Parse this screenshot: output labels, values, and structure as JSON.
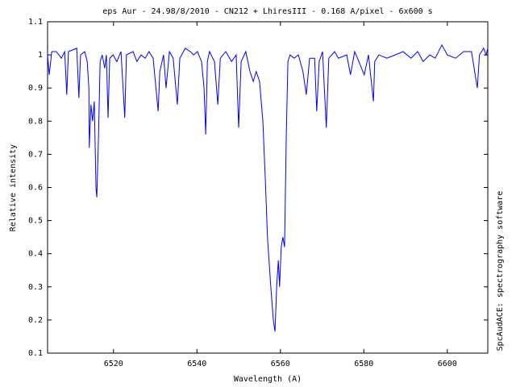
{
  "chart_data": {
    "type": "line",
    "title": "eps Aur - 24.98/8/2010 - CN212 + LhiresIII - 0.168 A/pixel - 6x600 s",
    "x_label": "Wavelength (A)",
    "y_label": "Relative intensity",
    "side_note": "SpcAudACE: spectrography software",
    "xlim": [
      6504.2,
      6609.7
    ],
    "ylim": [
      0.1,
      1.1
    ],
    "xticks": [
      6520,
      6540,
      6560,
      6580,
      6600
    ],
    "yticks": [
      0.1,
      0.2,
      0.3,
      0.4,
      0.5,
      0.6,
      0.7,
      0.8,
      0.9,
      1,
      1.1
    ],
    "grid": false,
    "series": [
      {
        "color": "#0000ff",
        "x": [
          6504.2,
          6504.6,
          6505.2,
          6506.3,
          6507.5,
          6508.3,
          6508.8,
          6509.2,
          6511.2,
          6511.7,
          6512.1,
          6513.1,
          6513.7,
          6514.1,
          6514.2,
          6514.6,
          6515.0,
          6515.4,
          6515.8,
          6516.0,
          6516.4,
          6516.8,
          6517.3,
          6517.9,
          6518.3,
          6518.7,
          6519.1,
          6519.9,
          6520.8,
          6521.8,
          6522.7,
          6523.1,
          6524.7,
          6525.6,
          6526.6,
          6527.6,
          6528.5,
          6529.5,
          6530.7,
          6531.1,
          6532.0,
          6532.6,
          6533.4,
          6534.3,
          6535.3,
          6535.9,
          6537.2,
          6538.4,
          6539.2,
          6540.1,
          6541.1,
          6541.7,
          6542.1,
          6542.5,
          6543.0,
          6544.2,
          6545.0,
          6545.6,
          6546.9,
          6548.3,
          6549.4,
          6550.0,
          6550.6,
          6551.7,
          6552.7,
          6553.5,
          6554.2,
          6555.0,
          6555.8,
          6556.4,
          6556.9,
          6557.7,
          6558.3,
          6558.7,
          6559.1,
          6559.5,
          6559.8,
          6560.2,
          6560.6,
          6561.0,
          6561.4,
          6561.8,
          6562.3,
          6563.3,
          6564.3,
          6565.4,
          6566.2,
          6567.0,
          6568.2,
          6568.7,
          6569.3,
          6570.1,
          6571.0,
          6571.6,
          6573.0,
          6573.9,
          6575.9,
          6576.8,
          6577.8,
          6578.8,
          6580.1,
          6581.1,
          6582.3,
          6582.6,
          6583.6,
          6585.5,
          6587.5,
          6589.4,
          6591.3,
          6592.9,
          6594.2,
          6595.8,
          6597.1,
          6598.7,
          6600.0,
          6602.0,
          6603.9,
          6605.8,
          6606.8,
          6607.2,
          6607.7,
          6608.7,
          6609.3,
          6609.7
        ],
        "values": [
          1.0,
          0.94,
          1.01,
          1.01,
          0.99,
          1.01,
          0.88,
          1.01,
          1.02,
          0.87,
          1.0,
          1.01,
          0.98,
          0.9,
          0.72,
          0.85,
          0.8,
          0.86,
          0.6,
          0.57,
          0.75,
          0.98,
          1.0,
          0.96,
          1.0,
          0.81,
          0.99,
          1.0,
          0.98,
          1.01,
          0.81,
          1.0,
          1.01,
          0.98,
          1.0,
          0.99,
          1.01,
          0.99,
          0.83,
          0.95,
          1.0,
          0.9,
          1.01,
          0.99,
          0.85,
          0.99,
          1.02,
          1.01,
          1.0,
          1.01,
          0.98,
          0.9,
          0.76,
          0.98,
          1.01,
          0.98,
          0.85,
          0.99,
          1.01,
          0.98,
          1.0,
          0.78,
          0.98,
          1.01,
          0.95,
          0.92,
          0.95,
          0.92,
          0.8,
          0.62,
          0.45,
          0.3,
          0.2,
          0.165,
          0.3,
          0.38,
          0.3,
          0.42,
          0.45,
          0.42,
          0.75,
          0.98,
          1.0,
          0.99,
          1.0,
          0.95,
          0.88,
          0.99,
          0.99,
          0.83,
          0.98,
          1.01,
          0.78,
          0.99,
          1.01,
          0.99,
          1.0,
          0.94,
          1.01,
          0.98,
          0.94,
          1.0,
          0.86,
          0.98,
          1.0,
          0.99,
          1.0,
          1.01,
          0.99,
          1.01,
          0.98,
          1.0,
          0.99,
          1.03,
          1.0,
          0.99,
          1.01,
          1.01,
          0.93,
          0.9,
          1.0,
          1.02,
          1.0,
          1.02
        ]
      }
    ]
  }
}
